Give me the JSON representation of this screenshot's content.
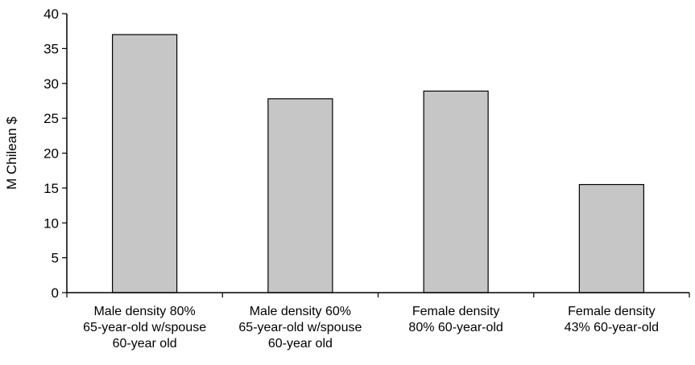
{
  "chart_data": {
    "type": "bar",
    "categories": [
      [
        "Male density 80%",
        "65-year-old w/spouse",
        "60-year old"
      ],
      [
        "Male density 60%",
        "65-year-old w/spouse",
        "60-year old"
      ],
      [
        "Female density",
        "80% 60-year-old"
      ],
      [
        "Female density",
        "43% 60-year-old"
      ]
    ],
    "values": [
      37,
      27.8,
      28.9,
      15.5
    ],
    "title": "",
    "xlabel": "",
    "ylabel": "M Chilean $",
    "ylim": [
      0,
      40
    ],
    "yticks": [
      0,
      5,
      10,
      15,
      20,
      25,
      30,
      35,
      40
    ],
    "grid": false,
    "legend": "none",
    "bar_color": "#c6c6c6"
  }
}
